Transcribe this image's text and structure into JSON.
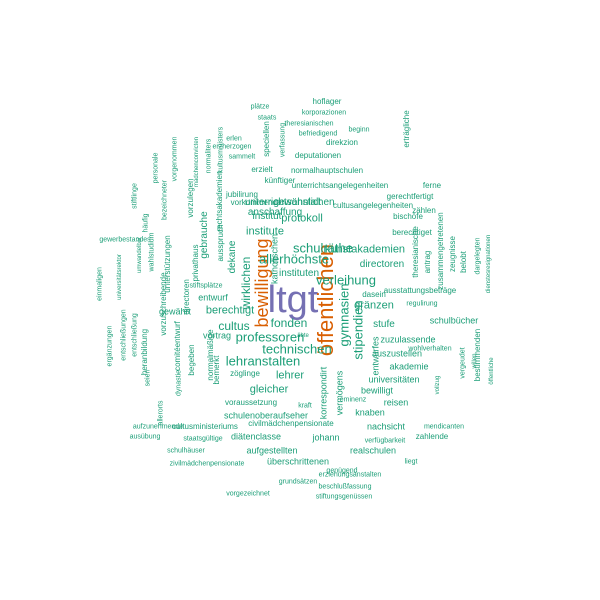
{
  "colors": {
    "background": "#ffffff",
    "small": "#1b9e77",
    "medium": "#d95f02",
    "large": "#7570b3"
  },
  "words": [
    {
      "text": "ltgt",
      "tier": "large"
    },
    {
      "text": "öffentlichen",
      "tier": "medium"
    },
    {
      "text": "bewilligung",
      "tier": "medium"
    },
    {
      "text": "allerhöchste",
      "tier": "small"
    },
    {
      "text": "gymnasien",
      "tier": "small"
    },
    {
      "text": "stipendien",
      "tier": "small"
    },
    {
      "text": "schulräthe",
      "tier": "small"
    },
    {
      "text": "verleihung",
      "tier": "small"
    },
    {
      "text": "technischen",
      "tier": "small"
    },
    {
      "text": "lehranstalten",
      "tier": "small"
    },
    {
      "text": "professoren",
      "tier": "small"
    },
    {
      "text": "fonden",
      "tier": "small"
    },
    {
      "text": "cultus",
      "tier": "small"
    },
    {
      "text": "wirklichen",
      "tier": "small"
    },
    {
      "text": "lehrer",
      "tier": "small"
    },
    {
      "text": "gleicher",
      "tier": "small"
    },
    {
      "text": "kunstakademien",
      "tier": "small"
    },
    {
      "text": "directoren",
      "tier": "small"
    },
    {
      "text": "protokoll",
      "tier": "small"
    },
    {
      "text": "gewöhnlichen",
      "tier": "small"
    },
    {
      "text": "unterrichtsanstalt",
      "tier": "small"
    },
    {
      "text": "anschaffung",
      "tier": "small"
    },
    {
      "text": "institut",
      "tier": "small"
    },
    {
      "text": "institute",
      "tier": "small"
    },
    {
      "text": "instituten",
      "tier": "small"
    },
    {
      "text": "gränzen",
      "tier": "small"
    },
    {
      "text": "stufe",
      "tier": "small"
    },
    {
      "text": "berechtigt",
      "tier": "small"
    },
    {
      "text": "vortrag",
      "tier": "small"
    },
    {
      "text": "entwurf",
      "tier": "small"
    },
    {
      "text": "gewährt",
      "tier": "small"
    },
    {
      "text": "dekane",
      "tier": "small"
    },
    {
      "text": "gebrauche",
      "tier": "small"
    },
    {
      "text": "katholischen",
      "tier": "small"
    },
    {
      "text": "schulbücher",
      "tier": "small"
    },
    {
      "text": "akademie",
      "tier": "small"
    },
    {
      "text": "zuzulassende",
      "tier": "small"
    },
    {
      "text": "auszustellen",
      "tier": "small"
    },
    {
      "text": "universitäten",
      "tier": "small"
    },
    {
      "text": "bewilligt",
      "tier": "small"
    },
    {
      "text": "reisen",
      "tier": "small"
    },
    {
      "text": "entwurfes",
      "tier": "small"
    },
    {
      "text": "knaben",
      "tier": "small"
    },
    {
      "text": "vermögens",
      "tier": "small"
    },
    {
      "text": "korrespondirt",
      "tier": "small"
    },
    {
      "text": "nachsicht",
      "tier": "small"
    },
    {
      "text": "johann",
      "tier": "small"
    },
    {
      "text": "diätenclasse",
      "tier": "small"
    },
    {
      "text": "realschulen",
      "tier": "small"
    },
    {
      "text": "aufgestellten",
      "tier": "small"
    },
    {
      "text": "überschrittenen",
      "tier": "small"
    },
    {
      "text": "schulenoberaufseher",
      "tier": "small"
    },
    {
      "text": "civilmädchenpensionate",
      "tier": "small"
    },
    {
      "text": "cultusministeriums",
      "tier": "small"
    },
    {
      "text": "voraussetzung",
      "tier": "small"
    },
    {
      "text": "zöglinge",
      "tier": "small"
    },
    {
      "text": "begeben",
      "tier": "small"
    },
    {
      "text": "bemerkt",
      "tier": "small"
    },
    {
      "text": "normalmäßige",
      "tier": "small"
    },
    {
      "text": "heranbildung",
      "tier": "small"
    },
    {
      "text": "comitéentwurf",
      "tier": "small"
    },
    {
      "text": "directoren",
      "tier": "small"
    },
    {
      "text": "vorzuschreibende",
      "tier": "small"
    },
    {
      "text": "privathaus",
      "tier": "small"
    },
    {
      "text": "unterstützungen",
      "tier": "small"
    },
    {
      "text": "vorzulegen",
      "tier": "small"
    },
    {
      "text": "ausspruch",
      "tier": "small"
    },
    {
      "text": "rechtsakademien",
      "tier": "small"
    },
    {
      "text": "erzielt",
      "tier": "small"
    },
    {
      "text": "deputationen",
      "tier": "small"
    },
    {
      "text": "normalhauptschulen",
      "tier": "small"
    },
    {
      "text": "unterrichtsangelegenheiten",
      "tier": "small"
    },
    {
      "text": "cultusangelegenheiten",
      "tier": "small"
    },
    {
      "text": "vorkommende",
      "tier": "small"
    },
    {
      "text": "jubilirung",
      "tier": "small"
    },
    {
      "text": "künftiger",
      "tier": "small"
    },
    {
      "text": "bischöfe",
      "tier": "small"
    },
    {
      "text": "berechtiget",
      "tier": "small"
    },
    {
      "text": "theresianische",
      "tier": "small"
    },
    {
      "text": "gerechtfertigt",
      "tier": "small"
    },
    {
      "text": "zählen",
      "tier": "small"
    },
    {
      "text": "ferne",
      "tier": "small"
    },
    {
      "text": "zusammengetretenen",
      "tier": "small"
    },
    {
      "text": "zeugnisse",
      "tier": "small"
    },
    {
      "text": "ausstattungsbeträge",
      "tier": "small"
    },
    {
      "text": "regulirung",
      "tier": "small"
    },
    {
      "text": "dasein",
      "tier": "small"
    },
    {
      "text": "antrag",
      "tier": "small"
    },
    {
      "text": "belobt",
      "tier": "small"
    },
    {
      "text": "dargelegten",
      "tier": "small"
    },
    {
      "text": "dienstesresignationen",
      "tier": "small"
    },
    {
      "text": "vergeudet",
      "tier": "small"
    },
    {
      "text": "bestimmenden",
      "tier": "small"
    },
    {
      "text": "wohlverhalten",
      "tier": "small"
    },
    {
      "text": "willen",
      "tier": "small"
    },
    {
      "text": "vollzug",
      "tier": "small"
    },
    {
      "text": "öffentliche",
      "tier": "small"
    },
    {
      "text": "mendicanten",
      "tier": "small"
    },
    {
      "text": "zahlende",
      "tier": "small"
    },
    {
      "text": "verfügbarkeit",
      "tier": "small"
    },
    {
      "text": "eminenz",
      "tier": "small"
    },
    {
      "text": "kraft",
      "tier": "small"
    },
    {
      "text": "äbte",
      "tier": "small"
    },
    {
      "text": "liegt",
      "tier": "small"
    },
    {
      "text": "erziehungsanstalten",
      "tier": "small"
    },
    {
      "text": "genügend",
      "tier": "small"
    },
    {
      "text": "grundsätzen",
      "tier": "small"
    },
    {
      "text": "beschlußfassung",
      "tier": "small"
    },
    {
      "text": "vorgezeichnet",
      "tier": "small"
    },
    {
      "text": "stiftungsgenüssen",
      "tier": "small"
    },
    {
      "text": "zivilmädchenpensionate",
      "tier": "small"
    },
    {
      "text": "schulhäuser",
      "tier": "small"
    },
    {
      "text": "staatsgültige",
      "tier": "small"
    },
    {
      "text": "ausübung",
      "tier": "small"
    },
    {
      "text": "aufzunehmende",
      "tier": "small"
    },
    {
      "text": "allerorts",
      "tier": "small"
    },
    {
      "text": "dynastie",
      "tier": "small"
    },
    {
      "text": "seien",
      "tier": "small"
    },
    {
      "text": "ergänzungen",
      "tier": "small"
    },
    {
      "text": "entschließungen",
      "tier": "small"
    },
    {
      "text": "entschließung",
      "tier": "small"
    },
    {
      "text": "einmaligen",
      "tier": "small"
    },
    {
      "text": "gewerbestandes",
      "tier": "small"
    },
    {
      "text": "universitätsrektor",
      "tier": "small"
    },
    {
      "text": "umwandelbar",
      "tier": "small"
    },
    {
      "text": "wahlstudium",
      "tier": "small"
    },
    {
      "text": "stiftsplätze",
      "tier": "small"
    },
    {
      "text": "stiftlinge",
      "tier": "small"
    },
    {
      "text": "häufig",
      "tier": "small"
    },
    {
      "text": "bezeichneter",
      "tier": "small"
    },
    {
      "text": "personale",
      "tier": "small"
    },
    {
      "text": "vorgenommen",
      "tier": "small"
    },
    {
      "text": "mädchenconvicten",
      "tier": "small"
    },
    {
      "text": "normaliters",
      "tier": "small"
    },
    {
      "text": "kultusministers",
      "tier": "small"
    },
    {
      "text": "erlen",
      "tier": "small"
    },
    {
      "text": "erzherzogen",
      "tier": "small"
    },
    {
      "text": "sammelt",
      "tier": "small"
    },
    {
      "text": "speciellen",
      "tier": "small"
    },
    {
      "text": "verfassung",
      "tier": "small"
    },
    {
      "text": "staats",
      "tier": "small"
    },
    {
      "text": "plätze",
      "tier": "small"
    },
    {
      "text": "hoflager",
      "tier": "small"
    },
    {
      "text": "korporazionen",
      "tier": "small"
    },
    {
      "text": "theresianischen",
      "tier": "small"
    },
    {
      "text": "befriedigend",
      "tier": "small"
    },
    {
      "text": "beginn",
      "tier": "small"
    },
    {
      "text": "direkzion",
      "tier": "small"
    },
    {
      "text": "erträgliche",
      "tier": "small"
    },
    {
      "text": "civilmädchenpensionat",
      "tier": "small"
    },
    {
      "text": "desgleichen",
      "tier": "small"
    }
  ]
}
